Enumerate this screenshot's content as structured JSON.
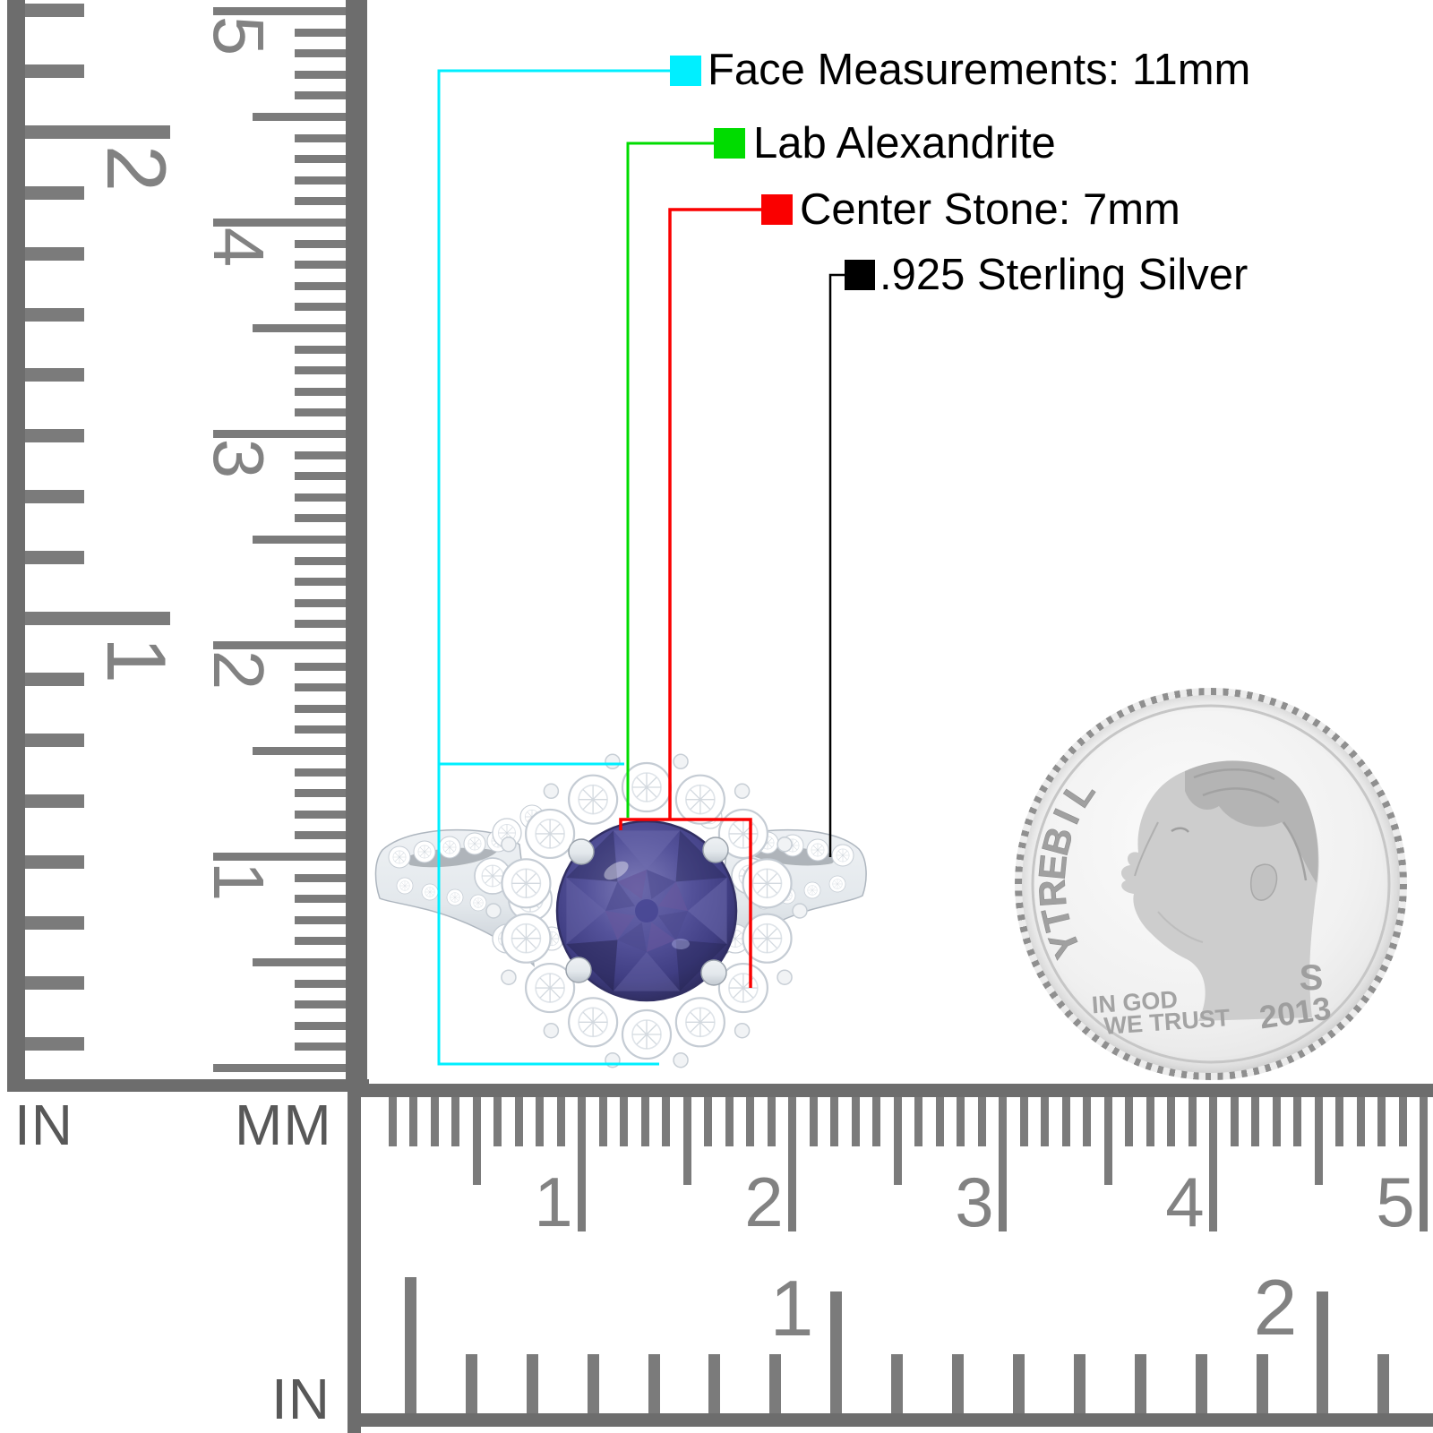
{
  "scene": {
    "background": "#ffffff"
  },
  "annotations": {
    "items": [
      {
        "id": "face",
        "label": "Face Measurements: 11mm",
        "color": "#00EFFF"
      },
      {
        "id": "gem",
        "label": "Lab Alexandrite",
        "color": "#00DC00"
      },
      {
        "id": "center",
        "label": "Center Stone: 7mm",
        "color": "#FA0000"
      },
      {
        "id": "metal",
        "label": ".925 Sterling Silver",
        "color": "#000000"
      }
    ]
  },
  "rulers": {
    "tick_color": "#7b7b7b",
    "number_color": "#828282",
    "label_color": "#585858",
    "left": {
      "inch_unit": "IN",
      "mm_unit": "MM",
      "inch_numbers": [
        "2",
        "1"
      ],
      "mm_numbers": [
        "5",
        "4",
        "3",
        "2",
        "1"
      ]
    },
    "bottom": {
      "inch_unit": "IN",
      "mm_numbers": [
        "1",
        "2",
        "3",
        "4",
        "5"
      ],
      "inch_numbers": [
        "1",
        "2"
      ]
    }
  },
  "ring": {
    "stone_color": "#54529a",
    "metal_color": "#eef1f4"
  },
  "coin": {
    "legend": "LIBERTY",
    "motto": [
      "IN GOD",
      "WE TRUST"
    ],
    "mint_mark": "S",
    "year": "2013"
  }
}
